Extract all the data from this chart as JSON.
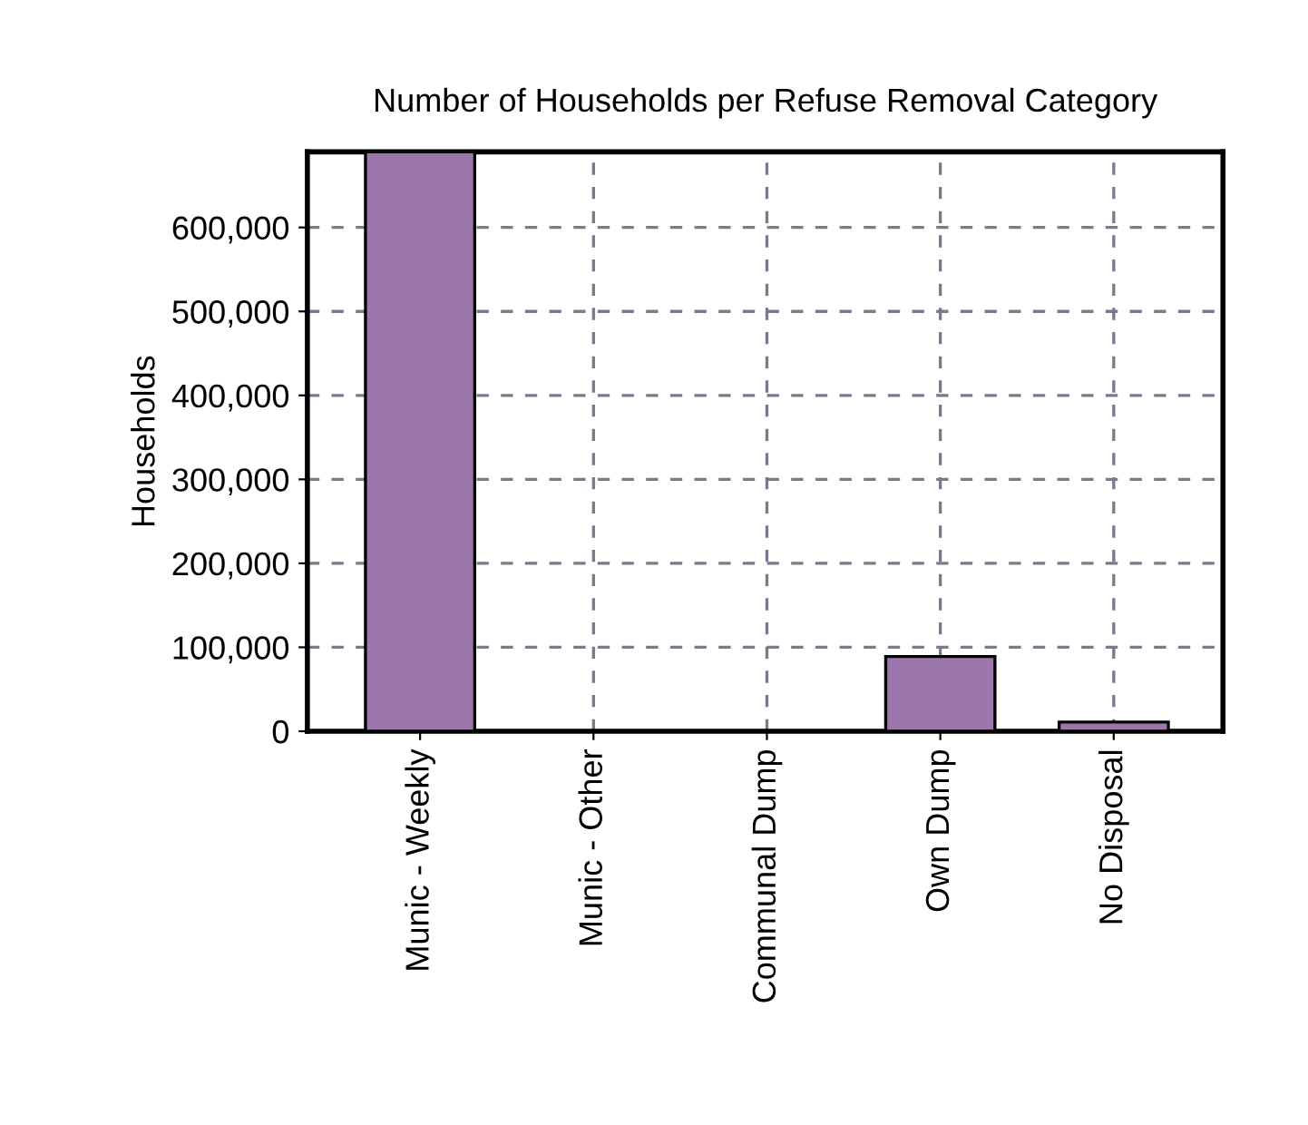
{
  "chart_data": {
    "type": "bar",
    "title": "Number of Households per Refuse Removal Category",
    "ylabel": "Households",
    "categories": [
      "Munic - Weekly",
      "Munic - Other",
      "Communal Dump",
      "Own Dump",
      "No Disposal"
    ],
    "values": [
      690000,
      0,
      0,
      89000,
      11000
    ],
    "color": "#9b77ae",
    "ylim": [
      0,
      690000
    ],
    "yticks": [
      {
        "value": 0,
        "label": "0"
      },
      {
        "value": 100000,
        "label": "100,000"
      },
      {
        "value": 200000,
        "label": "200,000"
      },
      {
        "value": 300000,
        "label": "300,000"
      },
      {
        "value": 400000,
        "label": "400,000"
      },
      {
        "value": 500000,
        "label": "500,000"
      },
      {
        "value": 600000,
        "label": "600,000"
      }
    ],
    "grid": true
  }
}
